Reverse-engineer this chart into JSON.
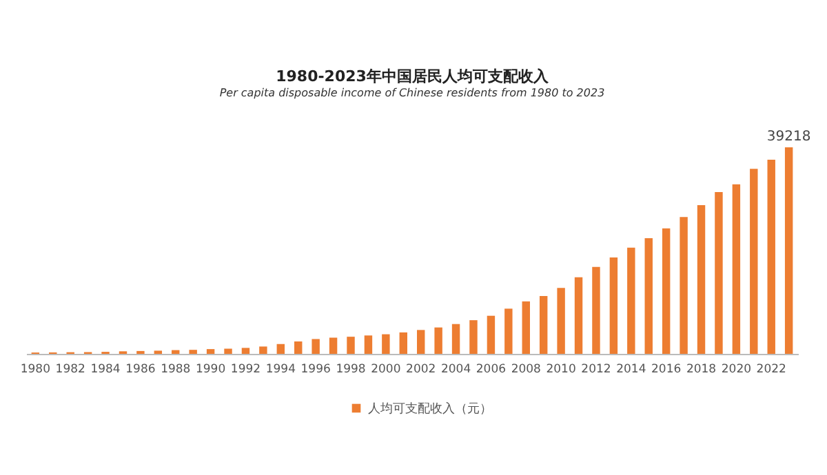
{
  "chart_data": {
    "type": "bar",
    "title": "1980-2023年中国居民人均可支配收入",
    "subtitle": "Per capita disposable income of Chinese residents from 1980 to 2023",
    "categories": [
      "1980",
      null,
      "1982",
      null,
      "1984",
      null,
      "1986",
      null,
      "1988",
      null,
      "1990",
      null,
      "1992",
      null,
      "1994",
      null,
      "1996",
      null,
      "1998",
      null,
      "2000",
      null,
      "2002",
      null,
      "2004",
      null,
      "2006",
      null,
      "2008",
      null,
      "2010",
      null,
      "2012",
      null,
      "2014",
      null,
      "2016",
      null,
      "2018",
      null,
      "2020",
      null,
      "2022",
      null
    ],
    "legend": "bottom",
    "series": [
      {
        "name": "人均可支配收入（元）",
        "color": "#ed7d31",
        "values": [
          250,
          270,
          310,
          330,
          380,
          480,
          540,
          600,
          710,
          760,
          900,
          980,
          1130,
          1390,
          1870,
          2360,
          2810,
          3070,
          3250,
          3490,
          3720,
          4070,
          4530,
          5010,
          5660,
          6390,
          7230,
          8580,
          9960,
          10980,
          12520,
          14550,
          16510,
          18310,
          20170,
          21970,
          23820,
          25970,
          28230,
          30730,
          32190,
          35130,
          36880,
          39218
        ],
        "value_labels": [
          null,
          null,
          null,
          null,
          null,
          null,
          null,
          null,
          null,
          null,
          null,
          null,
          null,
          null,
          null,
          null,
          null,
          null,
          null,
          null,
          null,
          null,
          null,
          null,
          null,
          null,
          null,
          null,
          null,
          null,
          null,
          null,
          null,
          null,
          null,
          null,
          null,
          null,
          null,
          null,
          null,
          null,
          null,
          "39218"
        ]
      }
    ]
  }
}
